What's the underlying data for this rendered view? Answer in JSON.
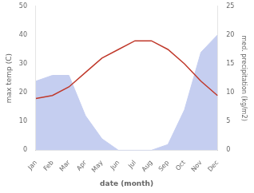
{
  "chart_data": {
    "type": "line",
    "categories": [
      "Jan",
      "Feb",
      "Mar",
      "Apr",
      "May",
      "Jun",
      "Jul",
      "Aug",
      "Sep",
      "Oct",
      "Nov",
      "Dec"
    ],
    "series": [
      {
        "type": "area",
        "color": "#c5cef0",
        "axis": "y2",
        "values": [
          12,
          13,
          13,
          6,
          2,
          0,
          0,
          0,
          1,
          7,
          17,
          20
        ]
      },
      {
        "type": "line",
        "color": "#c0392b",
        "values": [
          18,
          19,
          22,
          27,
          32,
          35,
          38,
          38,
          35,
          30,
          24,
          19
        ]
      }
    ],
    "xlabel": "date (month)",
    "ylabel": "max temp (C)",
    "y2label": "med. precipitation (kg/m2)",
    "ylim": [
      0,
      50
    ],
    "yticks": [
      0,
      10,
      20,
      30,
      40,
      50
    ],
    "y2lim": [
      0,
      25
    ],
    "y2ticks": [
      0,
      5,
      10,
      15,
      20,
      25
    ],
    "grid": false
  }
}
